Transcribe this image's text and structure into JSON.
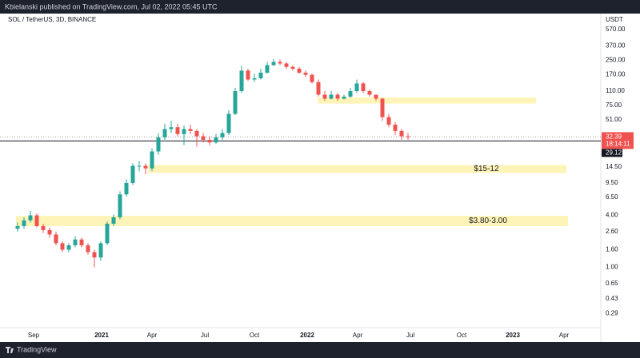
{
  "header": {
    "text": "Kbielanski published on TradingView.com, Jul 02, 2022 05:45 UTC"
  },
  "chart_data": {
    "type": "candlestick",
    "title": "SOL / TetherUS, 3D, BINANCE",
    "y_axis_label": "USDT",
    "log_scale": true,
    "grid": false,
    "up_color": "#26a69a",
    "down_color": "#ef5350",
    "open": [
      2.8,
      3.0,
      3.5,
      4.0,
      3.0,
      2.7,
      2.4,
      1.9,
      1.6,
      1.8,
      2.1,
      1.8,
      1.5,
      1.3,
      1.9,
      3.2,
      3.8,
      7,
      9.5,
      15,
      15,
      14,
      22,
      32,
      40,
      42,
      35,
      40,
      38,
      33,
      30,
      28,
      32,
      36,
      60,
      110,
      190,
      150,
      155,
      180,
      220,
      240,
      230,
      210,
      200,
      180,
      170,
      140,
      100,
      90,
      100,
      90,
      95,
      110,
      135,
      110,
      100,
      90,
      55,
      45,
      38,
      33
    ],
    "high": [
      3.3,
      3.8,
      4.5,
      4.2,
      3.2,
      2.9,
      2.6,
      2.0,
      1.9,
      2.3,
      2.2,
      1.9,
      1.6,
      2.0,
      3.4,
      4.1,
      7.6,
      10.5,
      16,
      17,
      16,
      24,
      36,
      46,
      50,
      46,
      44,
      45,
      40,
      36,
      33,
      35,
      40,
      66,
      120,
      215,
      200,
      175,
      200,
      240,
      260,
      255,
      240,
      220,
      210,
      190,
      175,
      150,
      110,
      110,
      105,
      100,
      120,
      150,
      140,
      115,
      100,
      92,
      60,
      48,
      40,
      36
    ],
    "low": [
      2.6,
      2.8,
      3.3,
      2.9,
      2.5,
      2.2,
      1.8,
      1.5,
      1.5,
      1.7,
      1.7,
      1.4,
      1.0,
      1.2,
      1.8,
      3.0,
      3.6,
      6.6,
      9.0,
      13,
      12,
      13,
      20,
      30,
      36,
      33,
      26,
      35,
      25,
      28,
      26,
      27,
      30,
      34,
      58,
      105,
      145,
      140,
      150,
      175,
      215,
      220,
      200,
      190,
      175,
      160,
      135,
      95,
      85,
      88,
      85,
      88,
      92,
      105,
      105,
      95,
      85,
      50,
      42,
      34,
      30,
      30
    ],
    "close": [
      3.0,
      3.5,
      4.0,
      3.0,
      2.7,
      2.4,
      1.9,
      1.6,
      1.8,
      2.1,
      1.8,
      1.5,
      1.3,
      1.9,
      3.2,
      3.8,
      7,
      9.5,
      15,
      15,
      14,
      22,
      32,
      40,
      42,
      35,
      40,
      38,
      33,
      30,
      28,
      32,
      36,
      60,
      110,
      190,
      150,
      155,
      180,
      220,
      240,
      230,
      210,
      200,
      180,
      170,
      140,
      100,
      90,
      100,
      90,
      95,
      110,
      135,
      110,
      100,
      90,
      55,
      45,
      38,
      33,
      32.39
    ],
    "ylim": [
      0.2,
      660
    ],
    "yticks": [
      {
        "value": 570,
        "label": "570.00"
      },
      {
        "value": 370,
        "label": "370.00"
      },
      {
        "value": 250,
        "label": "250.00"
      },
      {
        "value": 170,
        "label": "170.00"
      },
      {
        "value": 110,
        "label": "110.00"
      },
      {
        "value": 75,
        "label": "75.00"
      },
      {
        "value": 51,
        "label": "51.00"
      },
      {
        "value": 14.5,
        "label": "14.50"
      },
      {
        "value": 9.5,
        "label": "9.50"
      },
      {
        "value": 6.5,
        "label": "6.50"
      },
      {
        "value": 4,
        "label": "4.00"
      },
      {
        "value": 2.6,
        "label": "2.60"
      },
      {
        "value": 1.6,
        "label": "1.60"
      },
      {
        "value": 1,
        "label": "1.00"
      },
      0.65,
      0.43,
      0.29
    ],
    "xlim": [
      -2.75,
      91
    ],
    "xticks": [
      {
        "value": 2.5,
        "label": "Sep"
      },
      {
        "value": 13.125,
        "label": "2021"
      },
      {
        "value": 21,
        "label": "Apr"
      },
      {
        "value": 29.25,
        "label": "Jul"
      },
      {
        "value": 37,
        "label": "Oct"
      },
      {
        "value": 45.25,
        "label": "2022"
      },
      {
        "value": 53.125,
        "label": "Apr"
      },
      {
        "value": 61.375,
        "label": "Jul"
      },
      {
        "value": 69.375,
        "label": "Oct"
      },
      {
        "value": 77.375,
        "label": "2023"
      },
      {
        "value": 85.375,
        "label": "Apr"
      }
    ],
    "last_price": 32.39,
    "countdown": "18:14:11",
    "level_price": 29.12,
    "zones": [
      {
        "low": 79,
        "high": 93,
        "x0": 46.9,
        "x1": 81,
        "color": "#fff3b0"
      },
      {
        "low": 12.4,
        "high": 15.3,
        "x0": 20.4,
        "x1": 85.75,
        "color": "#fff3b0",
        "label": "$15-12"
      },
      {
        "low": 3.0,
        "high": 3.95,
        "x0": -0.25,
        "x1": 86,
        "color": "#fff3b0",
        "label": "$3.80-3.00"
      }
    ]
  },
  "footer": {
    "brand": "TradingView"
  }
}
